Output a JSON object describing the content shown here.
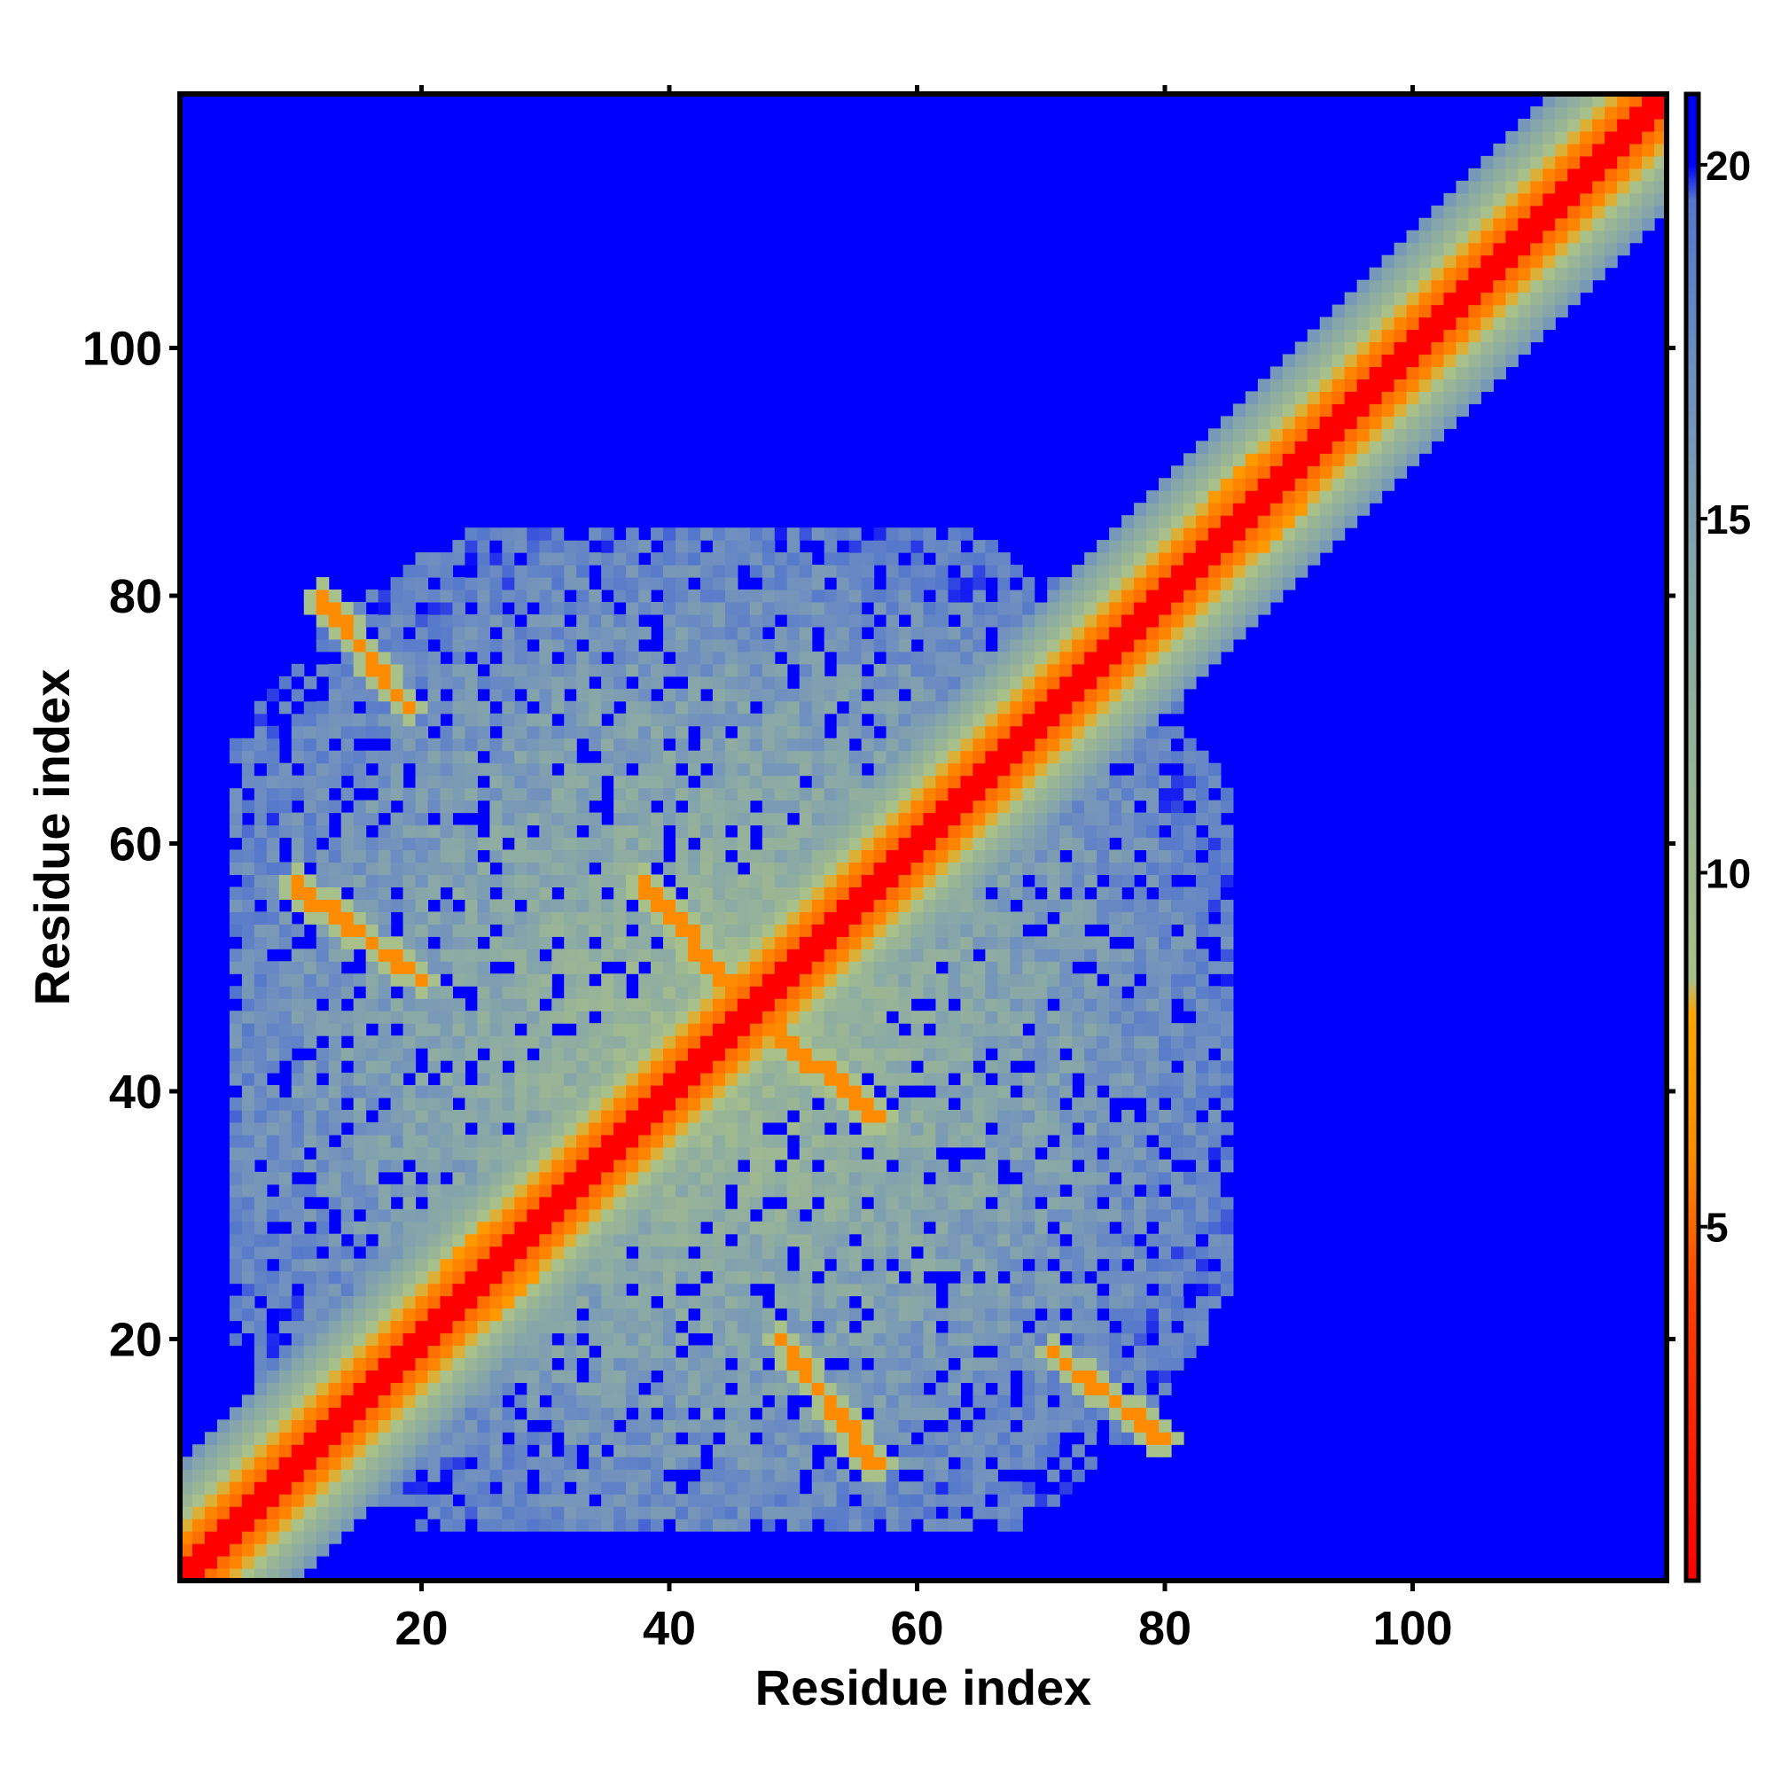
{
  "chart_data": {
    "type": "heatmap",
    "title": "",
    "xlabel": "Residue index",
    "ylabel": "Residue index",
    "xlim": [
      1,
      120
    ],
    "ylim": [
      1,
      120
    ],
    "x_ticks": [
      20,
      40,
      60,
      80,
      100
    ],
    "y_ticks": [
      20,
      40,
      60,
      80,
      100
    ],
    "grid": false,
    "description_of_values": "pairwise residue distance map; symmetric about the diagonal",
    "colorbar": {
      "placement": "right",
      "range": [
        0,
        21
      ],
      "ticks": [
        5,
        10,
        15,
        20
      ],
      "stops": [
        {
          "value": 0,
          "color": "#ff0000"
        },
        {
          "value": 4,
          "color": "#ff4000"
        },
        {
          "value": 6,
          "color": "#ff8c00"
        },
        {
          "value": 8,
          "color": "#ffa500"
        },
        {
          "value": 8.5,
          "color": "#a8c08a"
        },
        {
          "value": 11,
          "color": "#9ab595"
        },
        {
          "value": 14,
          "color": "#88a8a8"
        },
        {
          "value": 17,
          "color": "#6f8fc0"
        },
        {
          "value": 19.5,
          "color": "#5577cc"
        },
        {
          "value": 20,
          "color": "#0000ff"
        },
        {
          "value": 21,
          "color": "#0000ff"
        }
      ]
    },
    "background_value": 21,
    "diagonal": {
      "from": 1,
      "to": 120,
      "value": 0
    },
    "core_region": {
      "from": 5,
      "to": 85
    },
    "contact_bands": [
      {
        "i_from": 12,
        "i_to": 18,
        "j_from": 80,
        "j_to": 72,
        "value": 6
      },
      {
        "i_from": 10,
        "i_to": 20,
        "j_from": 56,
        "j_to": 49,
        "value": 6
      },
      {
        "i_from": 38,
        "i_to": 46,
        "j_from": 57,
        "j_to": 48,
        "value": 6
      },
      {
        "i_from": 48,
        "i_to": 56,
        "j_from": 45,
        "j_to": 38,
        "value": 6
      },
      {
        "i_from": 49,
        "i_to": 57,
        "j_from": 20,
        "j_to": 10,
        "value": 6
      },
      {
        "i_from": 71,
        "i_to": 79,
        "j_from": 19,
        "j_to": 12,
        "value": 6
      },
      {
        "i_from": 22,
        "i_to": 36,
        "j_from": 26,
        "j_to": 38,
        "value": 7
      },
      {
        "i_from": 60,
        "i_to": 72,
        "j_from": 58,
        "j_to": 70,
        "value": 7
      },
      {
        "i_from": 84,
        "i_to": 98,
        "j_from": 88,
        "j_to": 100,
        "value": 7
      }
    ],
    "c_terminal_region": {
      "from": 80,
      "to": 120,
      "band_width": 9
    }
  }
}
